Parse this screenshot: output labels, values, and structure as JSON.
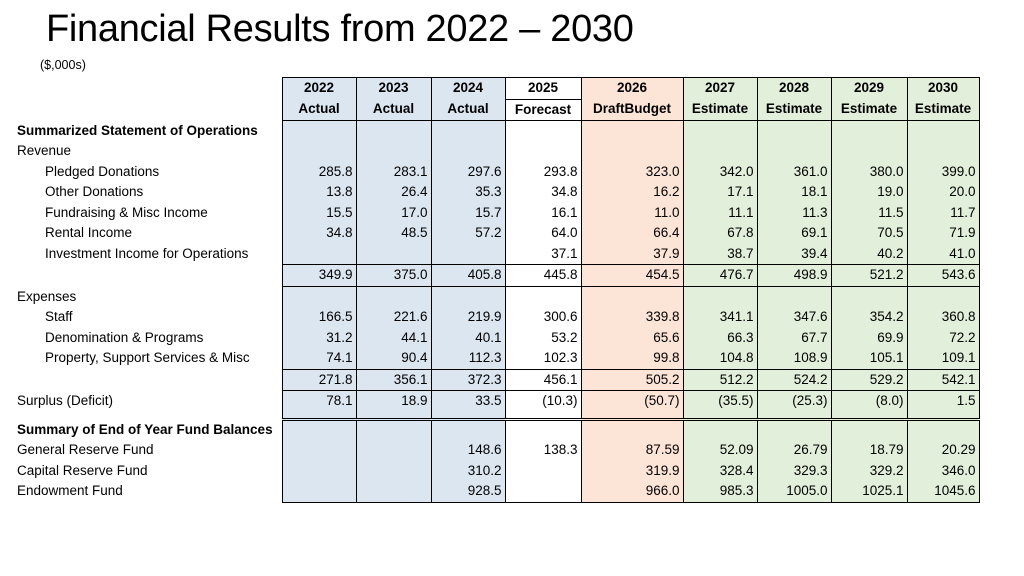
{
  "title": "Financial Results from 2022 – 2030",
  "units": "($,000s)",
  "colors": {
    "actual": "#dce6f1",
    "forecast": "#ffffff",
    "budget": "#fce4d6",
    "estimate": "#e2efda"
  },
  "columns": [
    {
      "year": "2022",
      "kind": "Actual",
      "group": "actual"
    },
    {
      "year": "2023",
      "kind": "Actual",
      "group": "actual"
    },
    {
      "year": "2024",
      "kind": "Actual",
      "group": "actual"
    },
    {
      "year": "2025",
      "kind": "Forecast",
      "group": "forecast"
    },
    {
      "year": "2026",
      "kind": "DraftBudget",
      "group": "budget"
    },
    {
      "year": "2027",
      "kind": "Estimate",
      "group": "estimate"
    },
    {
      "year": "2028",
      "kind": "Estimate",
      "group": "estimate"
    },
    {
      "year": "2029",
      "kind": "Estimate",
      "group": "estimate"
    },
    {
      "year": "2030",
      "kind": "Estimate",
      "group": "estimate"
    }
  ],
  "rows": [
    {
      "label": "Summarized Statement of Operations",
      "type": "section",
      "values": [
        "",
        "",
        "",
        "",
        "",
        "",
        "",
        "",
        ""
      ]
    },
    {
      "label": "Revenue",
      "type": "group",
      "values": [
        "",
        "",
        "",
        "",
        "",
        "",
        "",
        "",
        ""
      ]
    },
    {
      "label": "Pledged Donations",
      "type": "item",
      "values": [
        "285.8",
        "283.1",
        "297.6",
        "293.8",
        "323.0",
        "342.0",
        "361.0",
        "380.0",
        "399.0"
      ]
    },
    {
      "label": "Other Donations",
      "type": "item",
      "values": [
        "13.8",
        "26.4",
        "35.3",
        "34.8",
        "16.2",
        "17.1",
        "18.1",
        "19.0",
        "20.0"
      ]
    },
    {
      "label": "Fundraising & Misc Income",
      "type": "item",
      "values": [
        "15.5",
        "17.0",
        "15.7",
        "16.1",
        "11.0",
        "11.1",
        "11.3",
        "11.5",
        "11.7"
      ]
    },
    {
      "label": "Rental Income",
      "type": "item",
      "values": [
        "34.8",
        "48.5",
        "57.2",
        "64.0",
        "66.4",
        "67.8",
        "69.1",
        "70.5",
        "71.9"
      ]
    },
    {
      "label": "Investment Income for Operations",
      "type": "item",
      "values": [
        "",
        "",
        "",
        "37.1",
        "37.9",
        "38.7",
        "39.4",
        "40.2",
        "41.0"
      ]
    },
    {
      "label": "",
      "type": "total",
      "values": [
        "349.9",
        "375.0",
        "405.8",
        "445.8",
        "454.5",
        "476.7",
        "498.9",
        "521.2",
        "543.6"
      ]
    },
    {
      "label": "",
      "type": "blank",
      "values": [
        "",
        "",
        "",
        "",
        "",
        "",
        "",
        "",
        ""
      ]
    },
    {
      "label": "Expenses",
      "type": "group",
      "values": [
        "",
        "",
        "",
        "",
        "",
        "",
        "",
        "",
        ""
      ]
    },
    {
      "label": "Staff",
      "type": "item",
      "values": [
        "166.5",
        "221.6",
        "219.9",
        "300.6",
        "339.8",
        "341.1",
        "347.6",
        "354.2",
        "360.8"
      ]
    },
    {
      "label": "Denomination & Programs",
      "type": "item",
      "values": [
        "31.2",
        "44.1",
        "40.1",
        "53.2",
        "65.6",
        "66.3",
        "67.7",
        "69.9",
        "72.2"
      ]
    },
    {
      "label": "Property, Support Services & Misc",
      "type": "item",
      "values": [
        "74.1",
        "90.4",
        "112.3",
        "102.3",
        "99.8",
        "104.8",
        "108.9",
        "105.1",
        "109.1"
      ]
    },
    {
      "label": "",
      "type": "total",
      "values": [
        "271.8",
        "356.1",
        "372.3",
        "456.1",
        "505.2",
        "512.2",
        "524.2",
        "529.2",
        "542.1"
      ]
    },
    {
      "label": "",
      "type": "blank",
      "values": [
        "",
        "",
        "",
        "",
        "",
        "",
        "",
        "",
        ""
      ]
    },
    {
      "label": "Surplus (Deficit)",
      "type": "group",
      "values": [
        "78.1",
        "18.9",
        "33.5",
        "(10.3)",
        "(50.7)",
        "(35.5)",
        "(25.3)",
        "(8.0)",
        "1.5"
      ]
    },
    {
      "label": "",
      "type": "dbl",
      "values": [
        "",
        "",
        "",
        "",
        "",
        "",
        "",
        "",
        ""
      ]
    },
    {
      "label": "Summary of End of Year Fund Balances",
      "type": "section",
      "values": [
        "",
        "",
        "",
        "",
        "",
        "",
        "",
        "",
        ""
      ]
    },
    {
      "label": "General Reserve Fund",
      "type": "group",
      "values": [
        "",
        "",
        "148.6",
        "138.3",
        "87.59",
        "52.09",
        "26.79",
        "18.79",
        "20.29"
      ]
    },
    {
      "label": "Capital Reserve Fund",
      "type": "group",
      "values": [
        "",
        "",
        "310.2",
        "",
        "319.9",
        "328.4",
        "329.3",
        "329.2",
        "346.0"
      ]
    },
    {
      "label": "Endowment Fund",
      "type": "group",
      "values": [
        "",
        "",
        "928.5",
        "",
        "966.0",
        "985.3",
        "1005.0",
        "1025.1",
        "1045.6"
      ]
    }
  ]
}
